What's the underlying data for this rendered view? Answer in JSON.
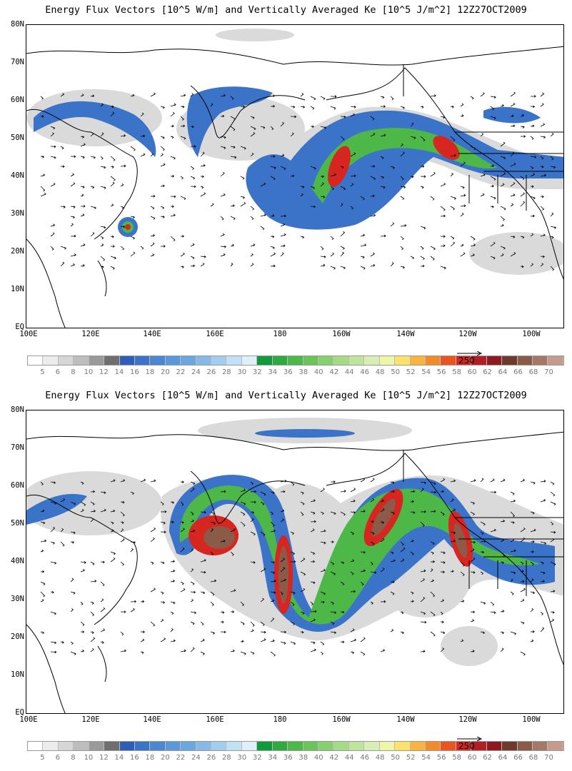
{
  "panels": [
    {
      "title": "Energy Flux Vectors [10^5 W/m] and Vertically Averaged Ke [10^5 J/m^2] 12Z27OCT2009",
      "lat_labels": [
        "80N",
        "70N",
        "60N",
        "50N",
        "40N",
        "30N",
        "20N",
        "10N",
        "EQ"
      ],
      "lon_labels": [
        "100E",
        "120E",
        "140E",
        "160E",
        "180",
        "160W",
        "140W",
        "120W",
        "100W"
      ],
      "ref_vector_label": "250"
    },
    {
      "title": "Energy Flux Vectors [10^5 W/m] and Vertically Averaged Ke [10^5 J/m^2] 12Z27OCT2009",
      "lat_labels": [
        "80N",
        "70N",
        "60N",
        "50N",
        "40N",
        "30N",
        "20N",
        "10N",
        "EQ"
      ],
      "lon_labels": [
        "100E",
        "120E",
        "140E",
        "160E",
        "180",
        "160W",
        "140W",
        "120W",
        "100W"
      ],
      "ref_vector_label": "250"
    }
  ],
  "colorbar": {
    "labels": [
      "5",
      "6",
      "8",
      "10",
      "12",
      "14",
      "16",
      "18",
      "20",
      "22",
      "24",
      "26",
      "28",
      "30",
      "32",
      "34",
      "36",
      "38",
      "40",
      "42",
      "44",
      "46",
      "48",
      "50",
      "52",
      "54",
      "56",
      "58",
      "60",
      "62",
      "64",
      "66",
      "68",
      "70"
    ],
    "colors": [
      "#ffffff",
      "#ececec",
      "#d6d6d6",
      "#bdbdbd",
      "#9a9a9a",
      "#6f6f6f",
      "#2e5fb8",
      "#3a73c8",
      "#4a86d2",
      "#5b97da",
      "#6aa6e0",
      "#86b9e8",
      "#a3cdef",
      "#c2e0f6",
      "#dff0fb",
      "#0f9a3c",
      "#2faa3e",
      "#4db848",
      "#69c55a",
      "#86d06d",
      "#a4dc85",
      "#bde69c",
      "#d7efb4",
      "#eef7a8",
      "#fbe36b",
      "#f9b33f",
      "#f28c2a",
      "#e8561e",
      "#d72620",
      "#b51d24",
      "#8e1a1f",
      "#6e3a2c",
      "#8b5a48",
      "#a6786a",
      "#c69a8c"
    ]
  }
}
